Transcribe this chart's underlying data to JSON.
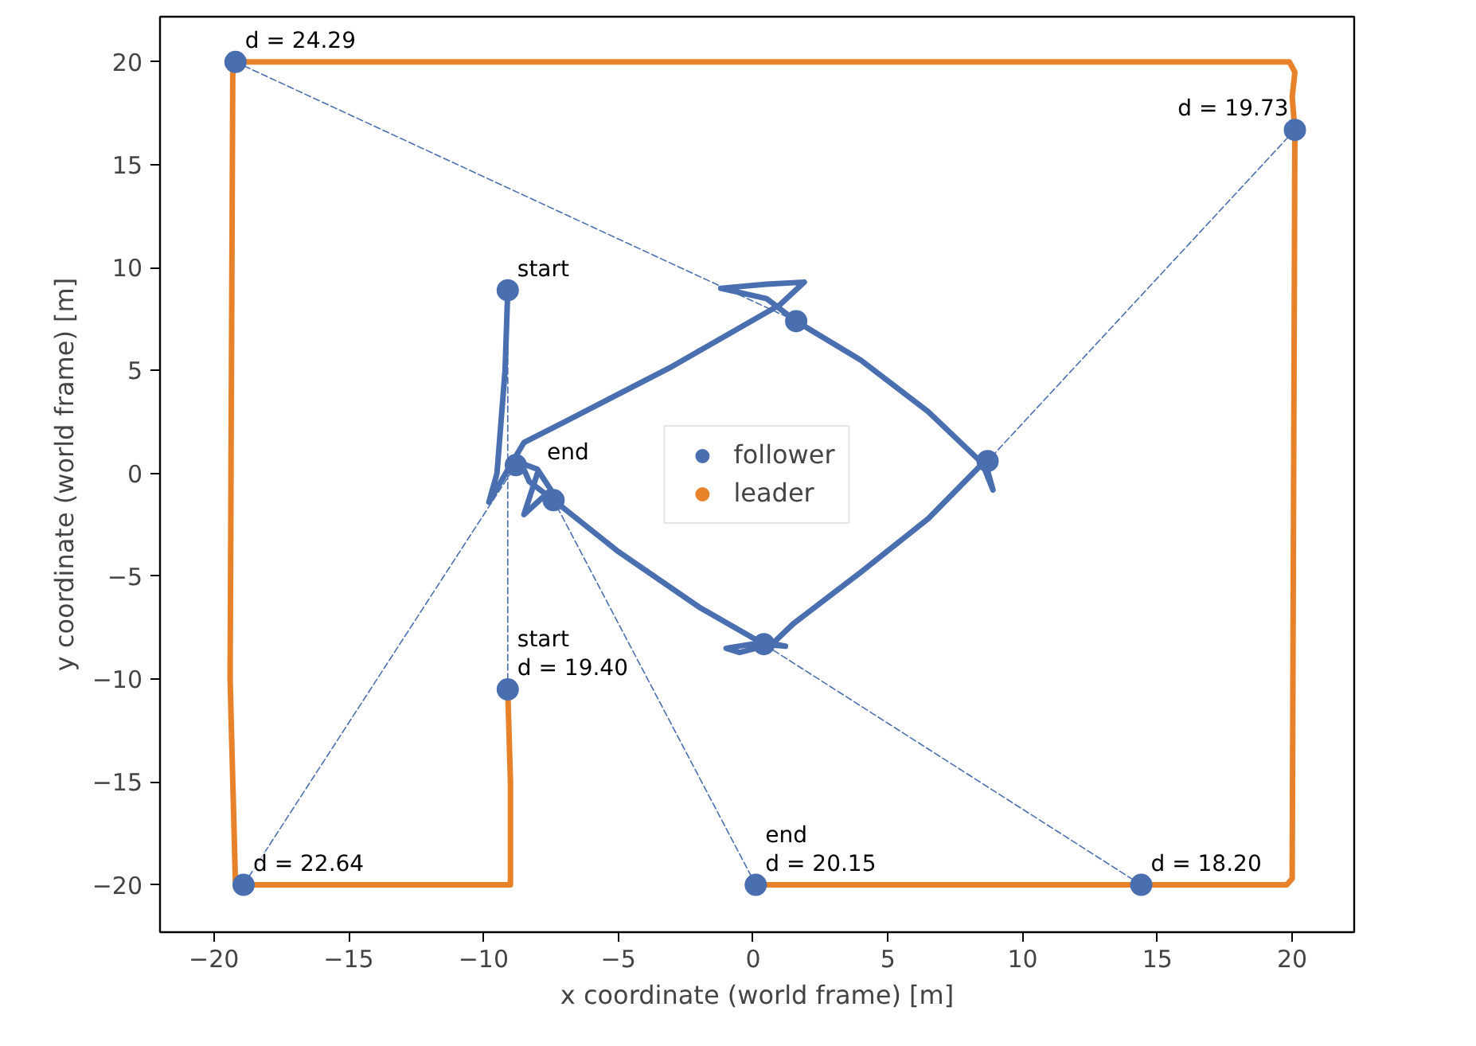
{
  "chart_data": {
    "type": "line",
    "xlabel": "x coordinate (world frame) [m]",
    "ylabel": "y coordinate (world frame) [m]",
    "xlim": [
      -22.0,
      22.3
    ],
    "ylim": [
      -22.3,
      22.2
    ],
    "xticks": [
      {
        "value": -20,
        "label": "−20"
      },
      {
        "value": -15,
        "label": "−15"
      },
      {
        "value": -10,
        "label": "−10"
      },
      {
        "value": -5,
        "label": "−5"
      },
      0,
      5,
      10,
      15,
      20
    ],
    "yticks": [
      {
        "value": -20,
        "label": "−20"
      },
      {
        "value": -15,
        "label": "−15"
      },
      {
        "value": -10,
        "label": "−10"
      },
      {
        "value": -5,
        "label": "−5"
      },
      0,
      5,
      10,
      15,
      20
    ],
    "grid": false,
    "legend": "center",
    "series": [
      {
        "name": "follower",
        "color": "#4a6fb0",
        "x": [
          -9.1,
          -9.2,
          -9.5,
          -9.8,
          -9.0,
          -8.5,
          -7.0,
          -3.0,
          1.0,
          1.9,
          0.5,
          -1.2,
          0.5,
          1.6,
          4.0,
          6.5,
          8.5,
          8.9,
          8.6,
          6.5,
          4.0,
          1.5,
          0.7,
          -0.5,
          -1.0,
          0.4,
          1.2,
          0.4,
          -2.0,
          -5.0,
          -7.4,
          -8.3,
          -8.6,
          -8.0,
          -7.5,
          -8.5,
          -8.0
        ],
        "values": [
          8.9,
          5.0,
          0.0,
          -1.4,
          0.4,
          1.5,
          2.5,
          5.2,
          8.2,
          9.3,
          9.2,
          9.0,
          8.5,
          7.4,
          5.5,
          3.0,
          0.5,
          -0.8,
          0.6,
          -2.2,
          -4.8,
          -7.3,
          -8.3,
          -8.7,
          -8.5,
          -8.2,
          -8.4,
          -8.3,
          -6.5,
          -3.8,
          -1.3,
          -0.4,
          0.5,
          0.2,
          -0.8,
          -2.0,
          0.0
        ]
      },
      {
        "name": "leader",
        "color": "#e8822a",
        "x": [
          -9.1,
          -9.0,
          -9.0,
          -19.2,
          -19.4,
          -19.3,
          -19.0,
          19.9,
          20.1,
          20.0,
          20.1,
          20.0,
          19.8,
          0.1
        ],
        "values": [
          -10.5,
          -15.0,
          -20.0,
          -20.0,
          -10.0,
          19.8,
          20.0,
          20.0,
          19.5,
          18.3,
          16.7,
          -19.7,
          -20.0,
          -20.0
        ]
      },
      {
        "type": "scatter",
        "marker": "circle",
        "color": "#4a6fb0",
        "x": [
          -19.2,
          1.6,
          20.1,
          8.7,
          -9.1,
          -9.1,
          -18.9,
          -8.8,
          0.1,
          -7.4,
          14.4,
          0.4
        ],
        "values": [
          20.0,
          7.4,
          16.7,
          0.6,
          -10.5,
          8.9,
          -20.0,
          0.4,
          -20.0,
          -1.3,
          -20.0,
          -8.3
        ]
      },
      {
        "color": "#4a6fb0",
        "line_style": "dashed",
        "x": [
          -19.2,
          1.6
        ],
        "values": [
          20.0,
          7.4
        ]
      },
      {
        "color": "#4a6fb0",
        "line_style": "dashed",
        "x": [
          20.1,
          8.7
        ],
        "values": [
          16.7,
          0.6
        ]
      },
      {
        "color": "#4a6fb0",
        "line_style": "dashed",
        "x": [
          -9.1,
          -9.1
        ],
        "values": [
          -10.5,
          8.9
        ]
      },
      {
        "color": "#4a6fb0",
        "line_style": "dashed",
        "x": [
          -18.9,
          -8.8
        ],
        "values": [
          -20.0,
          0.4
        ]
      },
      {
        "color": "#4a6fb0",
        "line_style": "dashed",
        "x": [
          0.1,
          -7.4
        ],
        "values": [
          -20.0,
          -1.3
        ]
      },
      {
        "color": "#4a6fb0",
        "line_style": "dashed",
        "x": [
          14.4,
          0.4
        ],
        "values": [
          -20.0,
          -8.3
        ]
      }
    ],
    "annotations": [
      {
        "text": "d = 24.29",
        "x": -19.2,
        "y": 20.0
      },
      {
        "text": "d = 19.73",
        "x": 20.1,
        "y": 16.7
      },
      {
        "text": "d = 19.40",
        "x": -9.1,
        "y": -10.5
      },
      {
        "text": "d = 22.64",
        "x": -18.9,
        "y": -20.0
      },
      {
        "text": "d = 20.15",
        "x": 0.1,
        "y": -20.0
      },
      {
        "text": "d = 18.20",
        "x": 14.4,
        "y": -20.0
      },
      {
        "text": "start",
        "x": -9.1,
        "y": 8.9
      },
      {
        "text": "end",
        "x": -8.0,
        "y": 0.0
      },
      {
        "text": "start",
        "x": -9.1,
        "y": -10.5
      },
      {
        "text": "end",
        "x": 0.1,
        "y": -20.0
      }
    ]
  }
}
